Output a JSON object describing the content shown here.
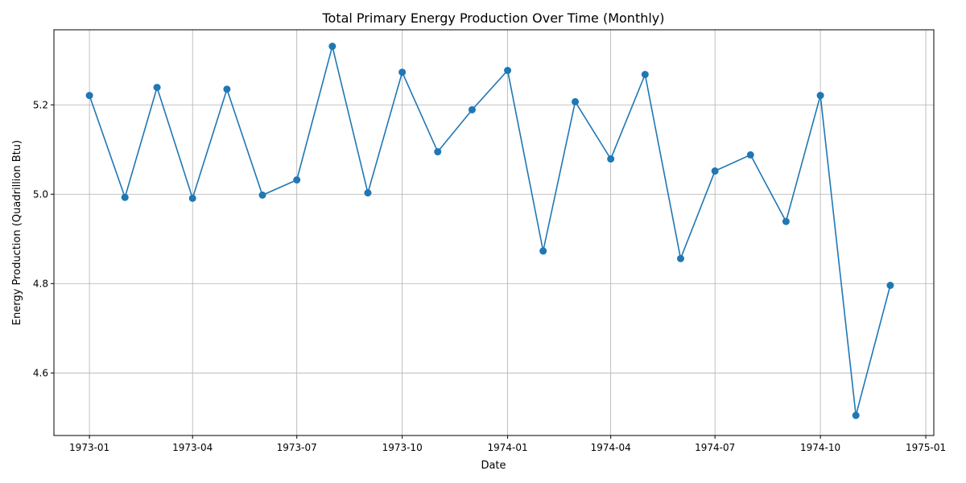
{
  "chart_data": {
    "type": "line",
    "title": "Total Primary Energy Production Over Time (Monthly)",
    "xlabel": "Date",
    "ylabel": "Energy Production (Quadrillion Btu)",
    "grid": true,
    "x_axis_type": "date",
    "xlim": [
      "1972-12-01",
      "1975-01-08"
    ],
    "ylim": [
      4.46,
      5.368
    ],
    "x_ticks": [
      "1973-01",
      "1973-04",
      "1973-07",
      "1973-10",
      "1974-01",
      "1974-04",
      "1974-07",
      "1974-10",
      "1975-01"
    ],
    "y_ticks": [
      4.6,
      4.8,
      5.0,
      5.2
    ],
    "y_tick_labels": [
      "4.6",
      "4.8",
      "5.0",
      "5.2"
    ],
    "series": [
      {
        "color": "#1f77b4",
        "marker": "circle",
        "x": [
          "1973-01-01",
          "1973-02-01",
          "1973-03-01",
          "1973-04-01",
          "1973-05-01",
          "1973-06-01",
          "1973-07-01",
          "1973-08-01",
          "1973-09-01",
          "1973-10-01",
          "1973-11-01",
          "1973-12-01",
          "1974-01-01",
          "1974-02-01",
          "1974-03-01",
          "1974-04-01",
          "1974-05-01",
          "1974-06-01",
          "1974-07-01",
          "1974-08-01",
          "1974-09-01",
          "1974-10-01",
          "1974-11-01",
          "1974-12-01"
        ],
        "y": [
          5.221,
          4.993,
          5.239,
          4.991,
          5.235,
          4.998,
          5.032,
          5.331,
          5.003,
          5.273,
          5.095,
          5.189,
          5.277,
          4.873,
          5.207,
          5.079,
          5.268,
          4.856,
          5.052,
          5.088,
          4.939,
          5.221,
          4.505,
          4.796
        ]
      }
    ]
  }
}
